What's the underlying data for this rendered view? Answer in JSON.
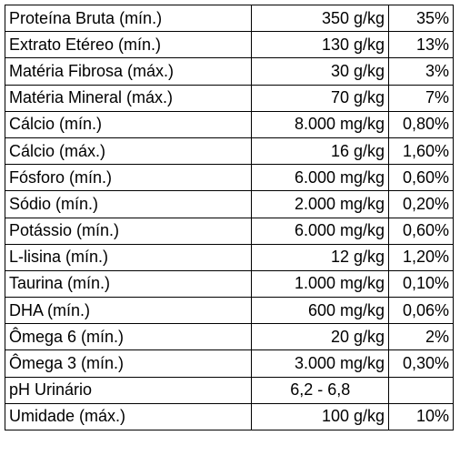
{
  "table": {
    "rows": [
      [
        "Proteína Bruta (mín.)",
        "350 g/kg",
        "35%"
      ],
      [
        "Extrato Etéreo (mín.)",
        "130 g/kg",
        "13%"
      ],
      [
        "Matéria Fibrosa (máx.)",
        "30 g/kg",
        "3%"
      ],
      [
        "Matéria Mineral (máx.)",
        "70 g/kg",
        "7%"
      ],
      [
        "Cálcio (mín.)",
        "8.000 mg/kg",
        "0,80%"
      ],
      [
        "Cálcio (máx.)",
        "16 g/kg",
        "1,60%"
      ],
      [
        "Fósforo (mín.)",
        "6.000 mg/kg",
        "0,60%"
      ],
      [
        "Sódio (mín.)",
        "2.000 mg/kg",
        "0,20%"
      ],
      [
        "Potássio (mín.)",
        "6.000 mg/kg",
        "0,60%"
      ],
      [
        "L-lisina (mín.)",
        "12 g/kg",
        "1,20%"
      ],
      [
        "Taurina (mín.)",
        "1.000 mg/kg",
        "0,10%"
      ],
      [
        "DHA (mín.)",
        "600 mg/kg",
        "0,06%"
      ],
      [
        "Ômega 6 (mín.)",
        "20 g/kg",
        "2%"
      ],
      [
        "Ômega 3 (mín.)",
        "3.000 mg/kg",
        "0,30%"
      ],
      [
        "pH Urinário",
        "6,2 - 6,8"
      ],
      [
        "Umidade (máx.)",
        "100 g/kg",
        "10%"
      ]
    ]
  }
}
